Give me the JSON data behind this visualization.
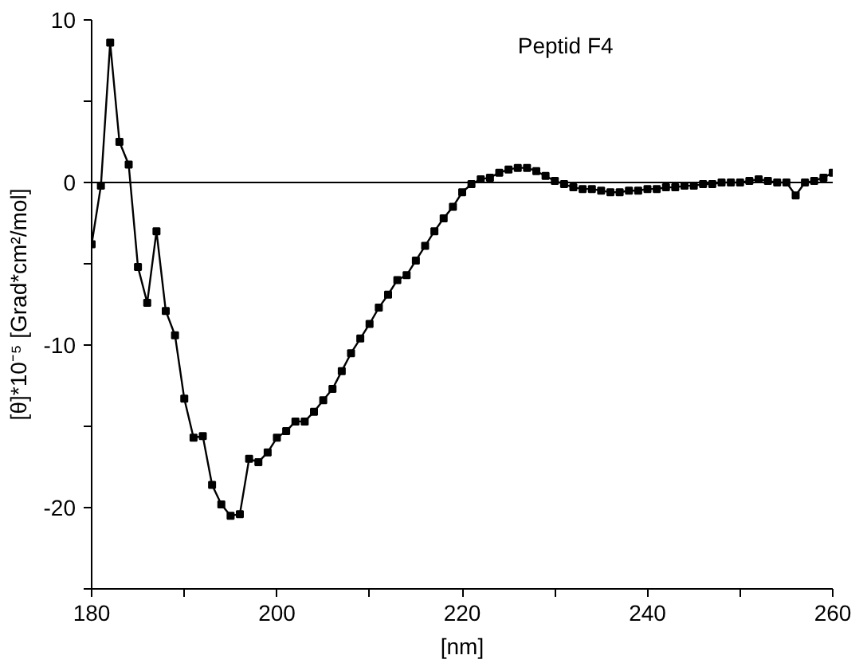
{
  "chart_data": {
    "type": "line",
    "title": "Peptid F4",
    "xlabel": "[nm]",
    "ylabel": "[θ]*10⁻⁵ [Grad*cm²/mol]",
    "x": [
      180,
      181,
      182,
      183,
      184,
      185,
      186,
      187,
      188,
      189,
      190,
      191,
      192,
      193,
      194,
      195,
      196,
      197,
      198,
      199,
      200,
      201,
      202,
      203,
      204,
      205,
      206,
      207,
      208,
      209,
      210,
      211,
      212,
      213,
      214,
      215,
      216,
      217,
      218,
      219,
      220,
      221,
      222,
      223,
      224,
      225,
      226,
      227,
      228,
      229,
      230,
      231,
      232,
      233,
      234,
      235,
      236,
      237,
      238,
      239,
      240,
      241,
      242,
      243,
      244,
      245,
      246,
      247,
      248,
      249,
      250,
      251,
      252,
      253,
      254,
      255,
      256,
      257,
      258,
      259,
      260
    ],
    "series": [
      {
        "color": "#000000",
        "values": [
          -3.8,
          -0.2,
          8.6,
          2.5,
          1.1,
          -5.2,
          -7.4,
          -3.0,
          -7.9,
          -9.4,
          -13.3,
          -15.7,
          -15.6,
          -18.6,
          -19.8,
          -20.5,
          -20.4,
          -17.0,
          -17.2,
          -16.6,
          -15.7,
          -15.3,
          -14.7,
          -14.7,
          -14.1,
          -13.4,
          -12.7,
          -11.6,
          -10.5,
          -9.6,
          -8.7,
          -7.7,
          -6.9,
          -6.0,
          -5.7,
          -4.8,
          -3.9,
          -3.0,
          -2.2,
          -1.5,
          -0.6,
          -0.1,
          0.2,
          0.3,
          0.6,
          0.8,
          0.9,
          0.9,
          0.7,
          0.4,
          0.1,
          -0.1,
          -0.3,
          -0.4,
          -0.4,
          -0.5,
          -0.6,
          -0.6,
          -0.5,
          -0.5,
          -0.4,
          -0.4,
          -0.3,
          -0.3,
          -0.2,
          -0.2,
          -0.1,
          -0.1,
          0.0,
          0.0,
          0.0,
          0.1,
          0.2,
          0.1,
          0.0,
          0.0,
          -0.8,
          0.0,
          0.1,
          0.3,
          0.6
        ]
      }
    ],
    "xlim": [
      180,
      260
    ],
    "ylim": [
      -25,
      10
    ],
    "xticks": [
      180,
      {
        "value": 190,
        "label": null
      },
      200,
      {
        "value": 210,
        "label": null
      },
      220,
      {
        "value": 230,
        "label": null
      },
      240,
      {
        "value": 250,
        "label": null
      },
      260
    ],
    "yticks": [
      {
        "value": -25,
        "label": null
      },
      -20,
      {
        "value": -15,
        "label": null
      },
      -10,
      {
        "value": -5,
        "label": null
      },
      0,
      {
        "value": 5,
        "label": null
      },
      10
    ],
    "ref_lines": [
      {
        "axis": "y",
        "value": 0,
        "color": "#000000"
      }
    ],
    "marker": "square",
    "line_style": "solid",
    "grid": false
  }
}
